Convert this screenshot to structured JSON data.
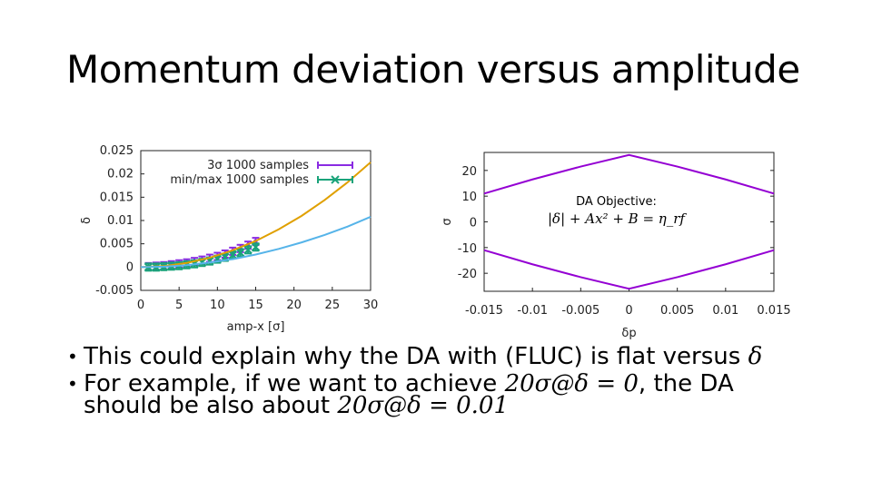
{
  "slide": {
    "title": "Momentum deviation versus amplitude",
    "bullets": [
      {
        "text": "This could explain why the DA with (FLUC) is flat versus ",
        "math": "δ",
        "text2": ""
      },
      {
        "text": "For example, if we want to achieve ",
        "math": "20σ@δ = 0",
        "text2": ", the DA"
      },
      {
        "text": "should be also about ",
        "math": "20σ@δ = 0.01",
        "text2": ""
      }
    ],
    "objective_title": "DA Objective:",
    "objective_formula": "|δ| + Ax² + B = η_rf"
  },
  "chart_data": [
    {
      "type": "line",
      "xlabel": "amp-x [σ]",
      "ylabel": "δ",
      "xlim": [
        0,
        30
      ],
      "ylim": [
        -0.005,
        0.025
      ],
      "xticks": [
        "0",
        "5",
        "10",
        "15",
        "20",
        "25",
        "30"
      ],
      "yticks": [
        "-0.005",
        "0",
        "0.005",
        "0.01",
        "0.015",
        "0.02",
        "0.025"
      ],
      "legend_position": "top-right",
      "series": [
        {
          "name": "3σ 1000 samples",
          "style": "errorbar",
          "color": "#8a2be2",
          "x": [
            1,
            2,
            3,
            4,
            5,
            6,
            7,
            8,
            9,
            10,
            11,
            12,
            13,
            14,
            15
          ],
          "y": [
            0.0001,
            0.0002,
            0.0003,
            0.0005,
            0.0007,
            0.0009,
            0.0012,
            0.0015,
            0.0019,
            0.0023,
            0.0028,
            0.0034,
            0.004,
            0.0047,
            0.0055
          ]
        },
        {
          "name": "min/max 1000 samples",
          "style": "errorbar",
          "color": "#1aa37a",
          "x": [
            1,
            2,
            3,
            4,
            5,
            6,
            7,
            8,
            9,
            10,
            11,
            12,
            13,
            14,
            15
          ],
          "y": [
            0.0,
            0.0,
            0.0001,
            0.0002,
            0.0003,
            0.0005,
            0.0007,
            0.001,
            0.0013,
            0.0017,
            0.0021,
            0.0026,
            0.0031,
            0.0037,
            0.0043
          ]
        },
        {
          "name": "",
          "style": "fit",
          "color": "#e0a000",
          "x": [
            0,
            3,
            6,
            9,
            12,
            15,
            18,
            21,
            24,
            27,
            30
          ],
          "y": [
            0.0,
            0.0002,
            0.0009,
            0.002,
            0.0036,
            0.0056,
            0.0081,
            0.011,
            0.0144,
            0.0182,
            0.0225
          ]
        },
        {
          "name": "",
          "style": "fit",
          "color": "#56b4e9",
          "x": [
            0,
            3,
            6,
            9,
            12,
            15,
            18,
            21,
            24,
            27,
            30
          ],
          "y": [
            0.0,
            0.0001,
            0.0004,
            0.001,
            0.0017,
            0.0027,
            0.0039,
            0.0053,
            0.0069,
            0.0087,
            0.0108
          ]
        }
      ]
    },
    {
      "type": "line",
      "xlabel": "δp",
      "ylabel": "σ",
      "xlim": [
        -0.015,
        0.015
      ],
      "ylim": [
        -27,
        27
      ],
      "xticks": [
        "-0.015",
        "-0.01",
        "-0.005",
        "0",
        "0.005",
        "0.01",
        "0.015"
      ],
      "yticks": [
        "20",
        "10",
        "0",
        "-10",
        "-20"
      ],
      "series": [
        {
          "name": "",
          "color": "#9400d3",
          "x": [
            -0.015,
            -0.01,
            -0.005,
            0,
            0.005,
            0.01,
            0.015
          ],
          "y": [
            11,
            16.5,
            21.5,
            26,
            21.5,
            16.5,
            11
          ]
        },
        {
          "name": "",
          "color": "#9400d3",
          "x": [
            -0.015,
            -0.01,
            -0.005,
            0,
            0.005,
            0.01,
            0.015
          ],
          "y": [
            -11,
            -16.5,
            -21.5,
            -26,
            -21.5,
            -16.5,
            -11
          ]
        }
      ]
    }
  ]
}
